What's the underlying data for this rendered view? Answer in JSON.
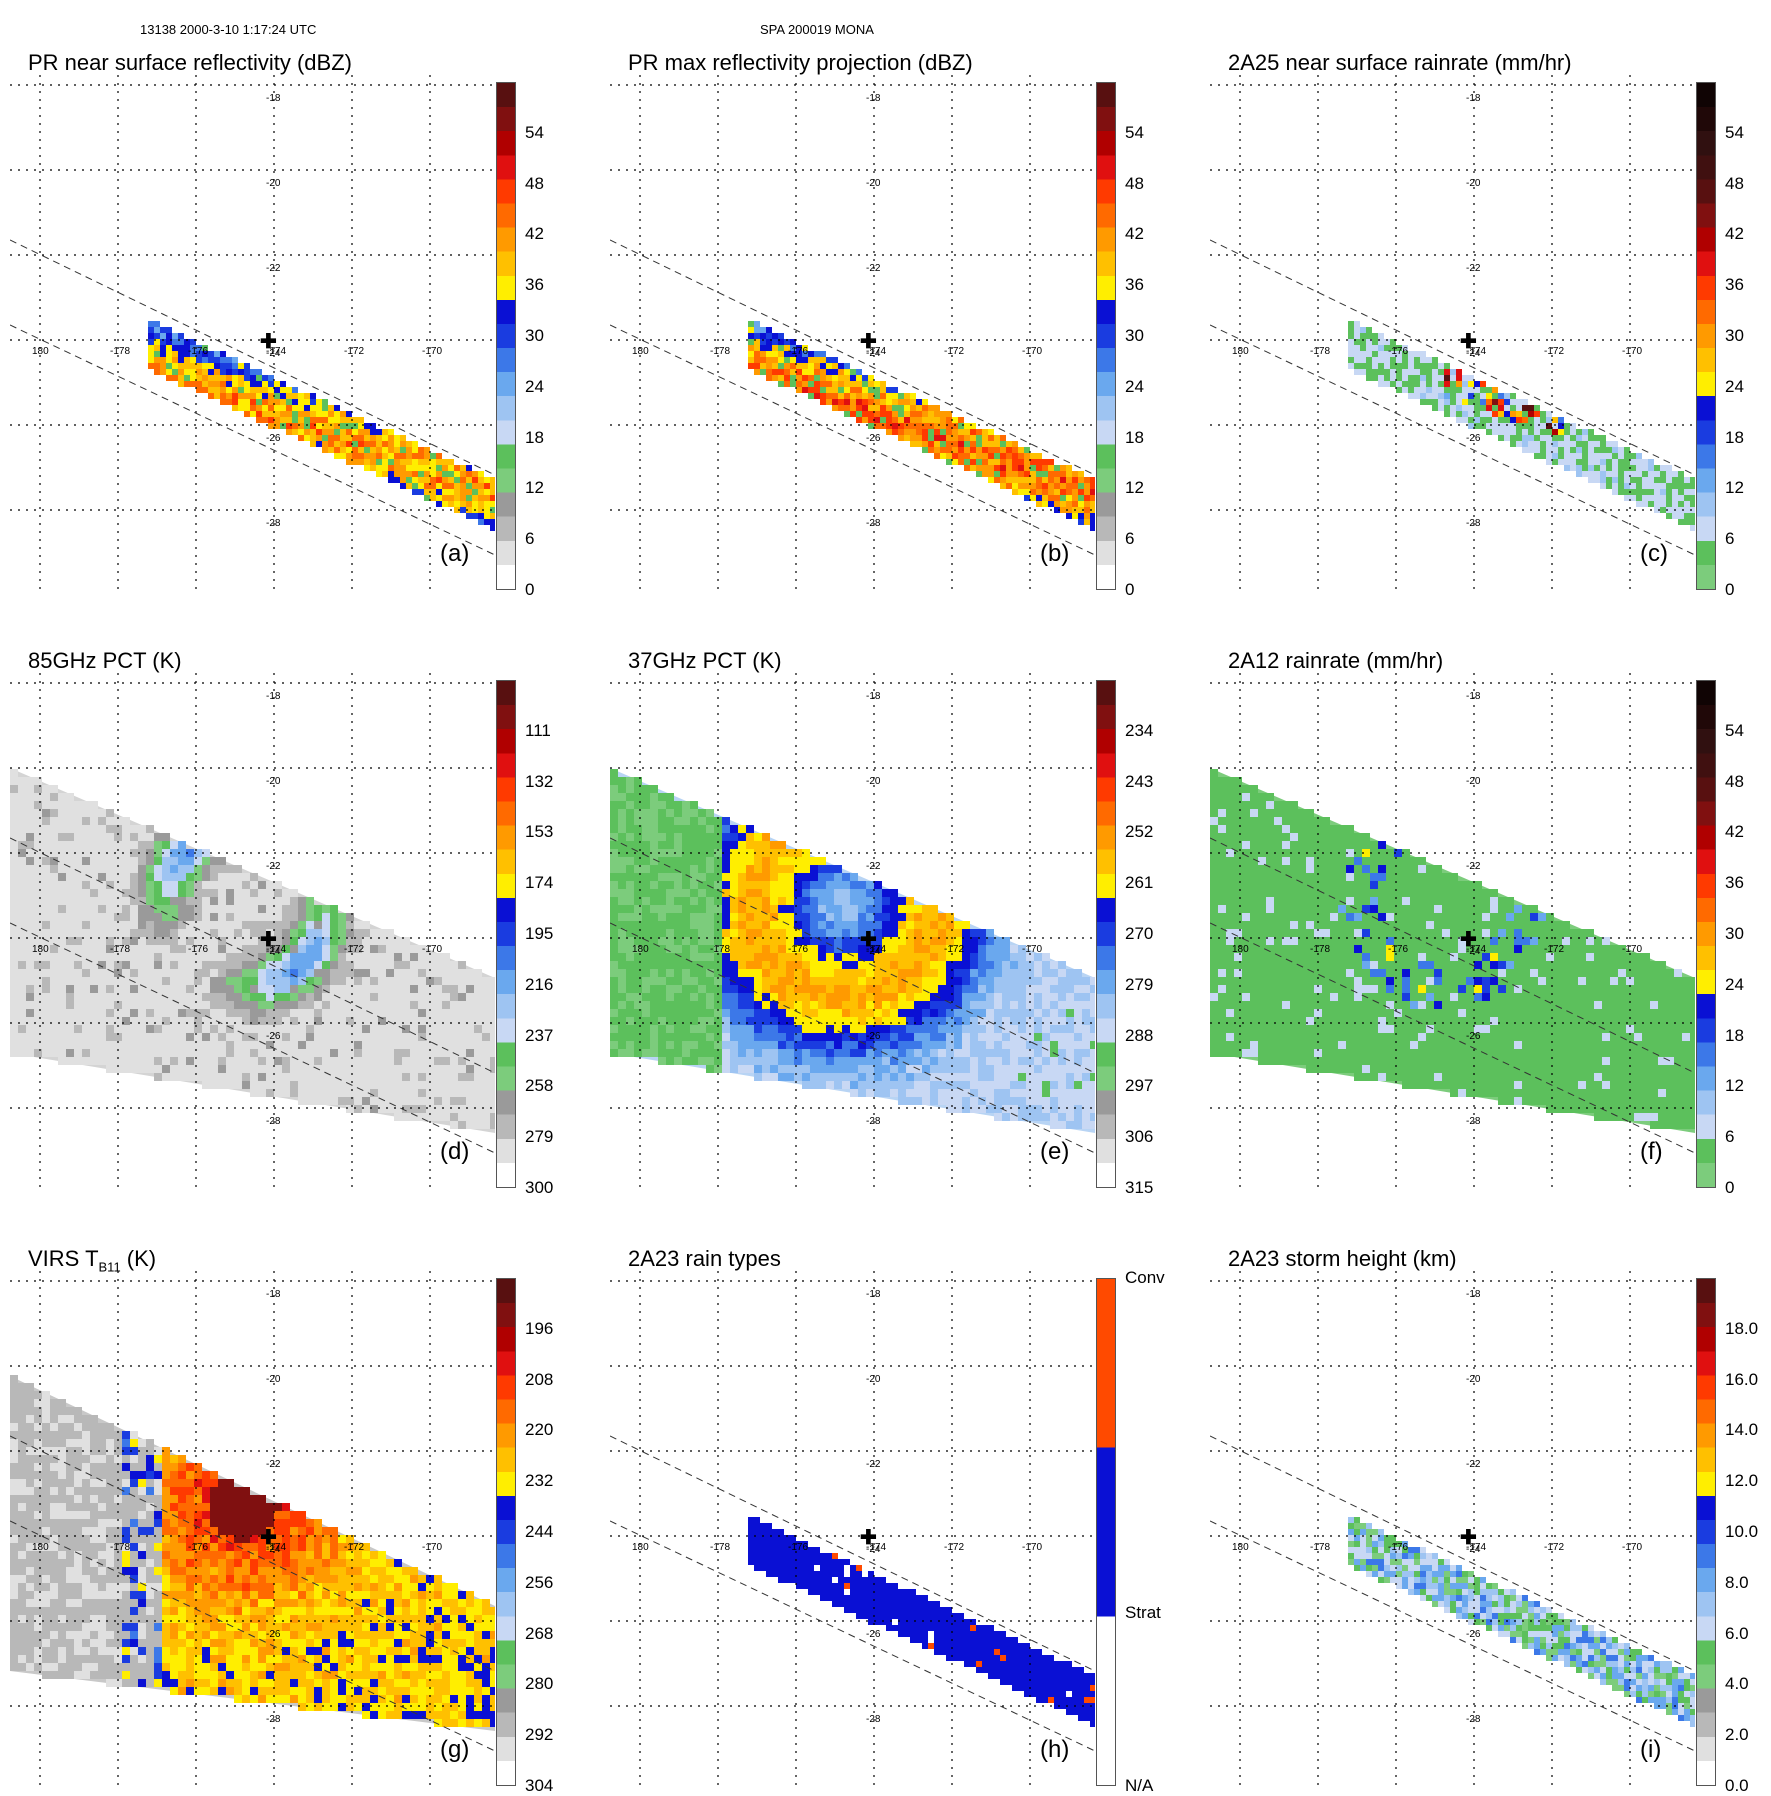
{
  "header": {
    "orbit_time": "13138 2000-3-10 1:17:24 UTC",
    "storm_id": "SPA 200019 MONA"
  },
  "chart_data": [
    {
      "type": "heatmap",
      "id": "a",
      "title": "PR near surface reflectivity (dBZ)",
      "letter": "(a)",
      "colorbar": {
        "labels": [
          "0",
          "6",
          "12",
          "18",
          "24",
          "30",
          "36",
          "42",
          "48",
          "54"
        ],
        "range": [
          0,
          60
        ],
        "colors": [
          "#ffffff",
          "#e0e0e0",
          "#b8b8b8",
          "#9a9a9a",
          "#7ccc7c",
          "#5cc05c",
          "#c8d8f4",
          "#9ec4f2",
          "#6aa8ee",
          "#3c78e8",
          "#1a3ce0",
          "#0a10d4",
          "#ffee00",
          "#ffc000",
          "#ff9a00",
          "#ff6a00",
          "#ff3a00",
          "#e01010",
          "#b00000",
          "#801010",
          "#581010"
        ]
      },
      "lon_labels": [
        "180",
        "-178",
        "-176",
        "-174",
        "-172",
        "-170"
      ],
      "lat_labels": [
        "-18",
        "-20",
        "-22",
        "-24",
        "-26",
        "-28"
      ],
      "swath": "PR"
    },
    {
      "type": "heatmap",
      "id": "b",
      "title": "PR max reflectivity projection (dBZ)",
      "letter": "(b)",
      "colorbar": {
        "labels": [
          "0",
          "6",
          "12",
          "18",
          "24",
          "30",
          "36",
          "42",
          "48",
          "54"
        ],
        "range": [
          0,
          60
        ],
        "colors": [
          "#ffffff",
          "#e0e0e0",
          "#b8b8b8",
          "#9a9a9a",
          "#7ccc7c",
          "#5cc05c",
          "#c8d8f4",
          "#9ec4f2",
          "#6aa8ee",
          "#3c78e8",
          "#1a3ce0",
          "#0a10d4",
          "#ffee00",
          "#ffc000",
          "#ff9a00",
          "#ff6a00",
          "#ff3a00",
          "#e01010",
          "#b00000",
          "#801010",
          "#581010"
        ]
      },
      "lon_labels": [
        "180",
        "-178",
        "-176",
        "-174",
        "-172",
        "-170"
      ],
      "lat_labels": [
        "-18",
        "-20",
        "-22",
        "-24",
        "-26",
        "-28"
      ],
      "swath": "PR"
    },
    {
      "type": "heatmap",
      "id": "c",
      "title": "2A25 near surface rainrate (mm/hr)",
      "letter": "(c)",
      "colorbar": {
        "labels": [
          "0",
          "6",
          "12",
          "18",
          "24",
          "30",
          "36",
          "42",
          "48",
          "54"
        ],
        "range": [
          0,
          60
        ],
        "colors": [
          "#7ccc7c",
          "#5cc05c",
          "#c8d8f4",
          "#9ec4f2",
          "#6aa8ee",
          "#3c78e8",
          "#1a3ce0",
          "#0a10d4",
          "#ffee00",
          "#ffc000",
          "#ff9a00",
          "#ff6a00",
          "#ff3a00",
          "#e01010",
          "#b00000",
          "#801010",
          "#581010",
          "#401010",
          "#301010",
          "#200808",
          "#100404"
        ]
      },
      "lon_labels": [
        "180",
        "-178",
        "-176",
        "-174",
        "-172",
        "-170"
      ],
      "lat_labels": [
        "-18",
        "-20",
        "-22",
        "-24",
        "-26",
        "-28"
      ],
      "swath": "PR"
    },
    {
      "type": "heatmap",
      "id": "d",
      "title": "85GHz PCT (K)",
      "letter": "(d)",
      "colorbar": {
        "labels": [
          "300",
          "279",
          "258",
          "237",
          "216",
          "195",
          "174",
          "153",
          "132",
          "111"
        ],
        "range": [
          300,
          90
        ],
        "colors": [
          "#ffffff",
          "#e0e0e0",
          "#b8b8b8",
          "#9a9a9a",
          "#7ccc7c",
          "#5cc05c",
          "#c8d8f4",
          "#9ec4f2",
          "#6aa8ee",
          "#3c78e8",
          "#1a3ce0",
          "#0a10d4",
          "#ffee00",
          "#ffc000",
          "#ff9a00",
          "#ff6a00",
          "#ff3a00",
          "#e01010",
          "#b00000",
          "#801010",
          "#581010"
        ]
      },
      "lon_labels": [
        "180",
        "-178",
        "-176",
        "-174",
        "-172",
        "-170"
      ],
      "lat_labels": [
        "-18",
        "-20",
        "-22",
        "-24",
        "-26",
        "-28"
      ],
      "swath": "TMI"
    },
    {
      "type": "heatmap",
      "id": "e",
      "title": "37GHz PCT (K)",
      "letter": "(e)",
      "colorbar": {
        "labels": [
          "315",
          "306",
          "297",
          "288",
          "279",
          "270",
          "261",
          "252",
          "243",
          "234"
        ],
        "range": [
          315,
          225
        ],
        "colors": [
          "#ffffff",
          "#e0e0e0",
          "#b8b8b8",
          "#9a9a9a",
          "#7ccc7c",
          "#5cc05c",
          "#c8d8f4",
          "#9ec4f2",
          "#6aa8ee",
          "#3c78e8",
          "#1a3ce0",
          "#0a10d4",
          "#ffee00",
          "#ffc000",
          "#ff9a00",
          "#ff6a00",
          "#ff3a00",
          "#e01010",
          "#b00000",
          "#801010",
          "#581010"
        ]
      },
      "lon_labels": [
        "180",
        "-178",
        "-176",
        "-174",
        "-172",
        "-170"
      ],
      "lat_labels": [
        "-18",
        "-20",
        "-22",
        "-24",
        "-26",
        "-28"
      ],
      "swath": "TMI"
    },
    {
      "type": "heatmap",
      "id": "f",
      "title": "2A12 rainrate (mm/hr)",
      "letter": "(f)",
      "colorbar": {
        "labels": [
          "0",
          "6",
          "12",
          "18",
          "24",
          "30",
          "36",
          "42",
          "48",
          "54"
        ],
        "range": [
          0,
          60
        ],
        "colors": [
          "#7ccc7c",
          "#5cc05c",
          "#c8d8f4",
          "#9ec4f2",
          "#6aa8ee",
          "#3c78e8",
          "#1a3ce0",
          "#0a10d4",
          "#ffee00",
          "#ffc000",
          "#ff9a00",
          "#ff6a00",
          "#ff3a00",
          "#e01010",
          "#b00000",
          "#801010",
          "#581010",
          "#401010",
          "#301010",
          "#200808",
          "#100404"
        ]
      },
      "lon_labels": [
        "180",
        "-178",
        "-176",
        "-174",
        "-172",
        "-170"
      ],
      "lat_labels": [
        "-18",
        "-20",
        "-22",
        "-24",
        "-26",
        "-28"
      ],
      "swath": "TMI"
    },
    {
      "type": "heatmap",
      "id": "g",
      "title": "VIRS T",
      "title_sub": "B11",
      "title_unit": " (K)",
      "letter": "(g)",
      "colorbar": {
        "labels": [
          "304",
          "292",
          "280",
          "268",
          "256",
          "244",
          "232",
          "220",
          "208",
          "196"
        ],
        "range": [
          304,
          184
        ],
        "colors": [
          "#ffffff",
          "#e0e0e0",
          "#b8b8b8",
          "#9a9a9a",
          "#7ccc7c",
          "#5cc05c",
          "#c8d8f4",
          "#9ec4f2",
          "#6aa8ee",
          "#3c78e8",
          "#1a3ce0",
          "#0a10d4",
          "#ffee00",
          "#ffc000",
          "#ff9a00",
          "#ff6a00",
          "#ff3a00",
          "#e01010",
          "#b00000",
          "#801010",
          "#581010"
        ]
      },
      "lon_labels": [
        "180",
        "-178",
        "-176",
        "-174",
        "-172",
        "-170"
      ],
      "lat_labels": [
        "-18",
        "-20",
        "-22",
        "-24",
        "-26",
        "-28"
      ],
      "swath": "VIRS"
    },
    {
      "type": "heatmap",
      "id": "h",
      "title": "2A23 rain types",
      "letter": "(h)",
      "colorbar": {
        "labels": [
          "N/A",
          "Strat",
          "Conv"
        ],
        "categorical": true,
        "colors": [
          "#ffffff",
          "#0a10d4",
          "#ff4a00"
        ]
      },
      "lon_labels": [
        "180",
        "-178",
        "-176",
        "-174",
        "-172",
        "-170"
      ],
      "lat_labels": [
        "-18",
        "-20",
        "-22",
        "-24",
        "-26",
        "-28"
      ],
      "swath": "PR"
    },
    {
      "type": "heatmap",
      "id": "i",
      "title": "2A23 storm height (km)",
      "letter": "(i)",
      "colorbar": {
        "labels": [
          "0.0",
          "2.0",
          "4.0",
          "6.0",
          "8.0",
          "10.0",
          "12.0",
          "14.0",
          "16.0",
          "18.0"
        ],
        "range": [
          0,
          20
        ],
        "colors": [
          "#ffffff",
          "#e0e0e0",
          "#b8b8b8",
          "#9a9a9a",
          "#7ccc7c",
          "#5cc05c",
          "#c8d8f4",
          "#9ec4f2",
          "#6aa8ee",
          "#3c78e8",
          "#1a3ce0",
          "#0a10d4",
          "#ffee00",
          "#ffc000",
          "#ff9a00",
          "#ff6a00",
          "#ff3a00",
          "#e01010",
          "#b00000",
          "#801010",
          "#581010"
        ]
      },
      "lon_labels": [
        "180",
        "-178",
        "-176",
        "-174",
        "-172",
        "-170"
      ],
      "lat_labels": [
        "-18",
        "-20",
        "-22",
        "-24",
        "-26",
        "-28"
      ],
      "swath": "PR"
    }
  ]
}
